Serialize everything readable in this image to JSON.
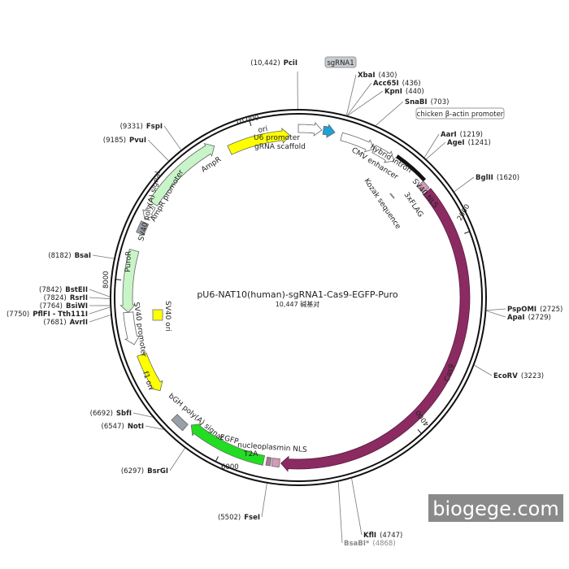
{
  "map": {
    "title": "pU6-NAT10(human)-sgRNA1-Cas9-EGFP-Puro",
    "length": "10,447 碱基对",
    "sites": [
      {
        "name": "PciI",
        "pos": "(10,442)"
      },
      {
        "name": "XbaI",
        "pos": "(430)"
      },
      {
        "name": "Acc65I",
        "pos": "(436)"
      },
      {
        "name": "KpnI",
        "pos": "(440)"
      },
      {
        "name": "SnaBI",
        "pos": "(703)"
      },
      {
        "name": "AarI",
        "pos": "(1219)"
      },
      {
        "name": "AgeI",
        "pos": "(1241)"
      },
      {
        "name": "BglII",
        "pos": "(1620)"
      },
      {
        "name": "PspOMI",
        "pos": "(2725)"
      },
      {
        "name": "ApaI",
        "pos": "(2729)"
      },
      {
        "name": "EcoRV",
        "pos": "(3223)"
      },
      {
        "name": "KflI",
        "pos": "(4747)"
      },
      {
        "name": "BsaBI*",
        "pos": "(4868)"
      },
      {
        "name": "FseI",
        "pos": "(5502)"
      },
      {
        "name": "BsrGI",
        "pos": "(6297)"
      },
      {
        "name": "NotI",
        "pos": "(6547)"
      },
      {
        "name": "SbfI",
        "pos": "(6692)"
      },
      {
        "name": "AvrII",
        "pos": "(7681)"
      },
      {
        "name": "PflFI - Tth111I",
        "pos": "(7750)"
      },
      {
        "name": "BsiWI",
        "pos": "(7764)"
      },
      {
        "name": "RsrII",
        "pos": "(7824)"
      },
      {
        "name": "BstEII",
        "pos": "(7842)"
      },
      {
        "name": "BsaI",
        "pos": "(8182)"
      },
      {
        "name": "PvuI",
        "pos": "(9185)"
      },
      {
        "name": "FspI",
        "pos": "(9331)"
      }
    ],
    "boxed_labels": [
      "sgRNA1",
      "chicken β-actin promoter"
    ],
    "features": [
      "ori",
      "U6 promoter",
      "gRNA scaffold",
      "CMV enhancer",
      "hybrid intron",
      "SV40 NLS",
      "3xFLAG",
      "Kozak sequence",
      "Cas9",
      "nucleoplasmin NLS",
      "T2A",
      "EGFP",
      "bGH poly(A) signal",
      "f1 ori",
      "SV40 promoter",
      "PuroR",
      "SV40 poly(A) signal",
      "SV40 ori",
      "AmpR promoter",
      "AmpR"
    ],
    "scale": [
      "10,000",
      "2000",
      "4000",
      "6000",
      "8000"
    ]
  },
  "watermark": "biogege.com"
}
